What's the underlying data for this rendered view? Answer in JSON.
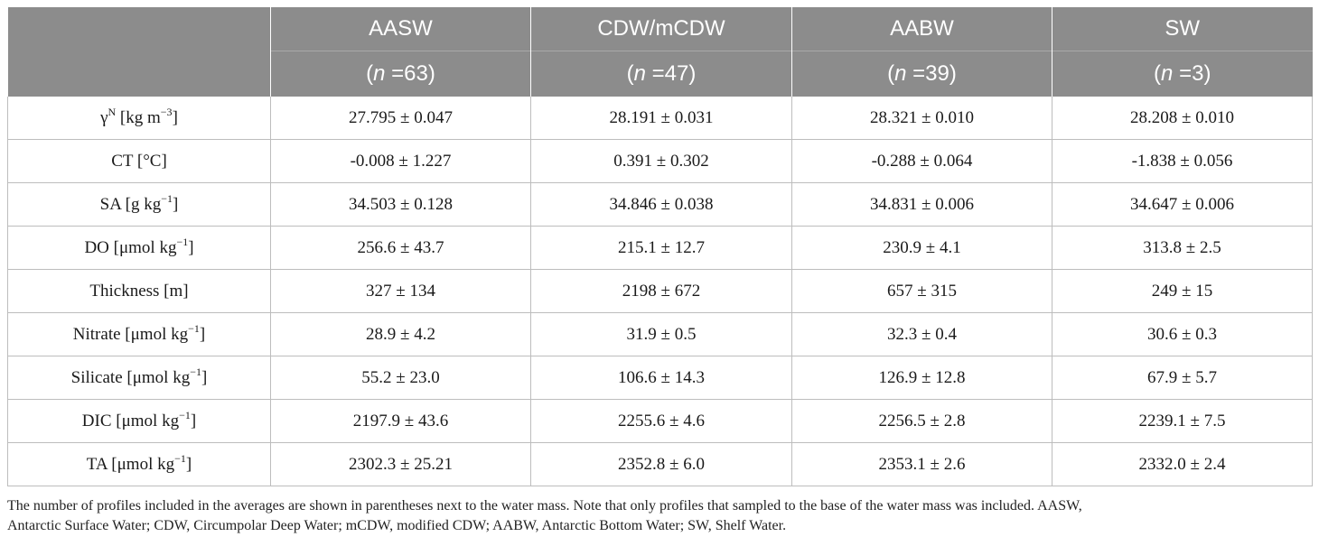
{
  "columns": [
    {
      "name": "AASW",
      "n_label": "(",
      "n_var": "n",
      "n_value": " =63)"
    },
    {
      "name": "CDW/mCDW",
      "n_label": "(",
      "n_var": "n",
      "n_value": " =47)"
    },
    {
      "name": "AABW",
      "n_label": "(",
      "n_var": "n",
      "n_value": " =39)"
    },
    {
      "name": "SW",
      "n_label": "(",
      "n_var": "n",
      "n_value": " =3)"
    }
  ],
  "rows": [
    {
      "label": "γ",
      "label_sup_pre": "N",
      "label_rest": " [kg m",
      "label_sup": "−3",
      "label_end": "]",
      "values": [
        "27.795 ± 0.047",
        "28.191 ± 0.031",
        "28.321 ± 0.010",
        "28.208 ± 0.010"
      ]
    },
    {
      "label": "CT [°C]",
      "values": [
        "-0.008 ± 1.227",
        "0.391 ± 0.302",
        "-0.288 ± 0.064",
        "-1.838 ± 0.056"
      ]
    },
    {
      "label": "SA [g kg",
      "label_sup": "−1",
      "label_end": "]",
      "values": [
        "34.503 ± 0.128",
        "34.846 ± 0.038",
        "34.831 ± 0.006",
        "34.647 ± 0.006"
      ]
    },
    {
      "label": "DO [μmol kg",
      "label_sup": "−1",
      "label_end": "]",
      "values": [
        "256.6 ± 43.7",
        "215.1 ± 12.7",
        "230.9 ± 4.1",
        "313.8 ± 2.5"
      ]
    },
    {
      "label": "Thickness [m]",
      "values": [
        "327 ± 134",
        "2198 ± 672",
        "657 ± 315",
        "249 ± 15"
      ]
    },
    {
      "label": "Nitrate [μmol kg",
      "label_sup": "−1",
      "label_end": "]",
      "values": [
        "28.9 ± 4.2",
        "31.9 ± 0.5",
        "32.3 ± 0.4",
        "30.6 ± 0.3"
      ]
    },
    {
      "label": "Silicate [μmol kg",
      "label_sup": "−1",
      "label_end": "]",
      "values": [
        "55.2 ± 23.0",
        "106.6 ± 14.3",
        "126.9 ± 12.8",
        "67.9 ± 5.7"
      ]
    },
    {
      "label": "DIC [μmol kg",
      "label_sup": "−1",
      "label_end": "]",
      "values": [
        "2197.9 ± 43.6",
        "2255.6 ± 4.6",
        "2256.5 ± 2.8",
        "2239.1 ± 7.5"
      ]
    },
    {
      "label": "TA [μmol kg",
      "label_sup": "−1",
      "label_end": "]",
      "values": [
        "2302.3 ± 25.21",
        "2352.8 ± 6.0",
        "2353.1 ± 2.6",
        "2332.0 ± 2.4"
      ]
    }
  ],
  "footnote": {
    "line1": "The number of profiles included in the averages are shown in parentheses next to the water mass. Note that only profiles that sampled to the base of the water mass was included. AASW,",
    "line2": "Antarctic Surface Water; CDW, Circumpolar Deep Water; mCDW, modified CDW; AABW, Antarctic Bottom Water; SW, Shelf Water."
  }
}
